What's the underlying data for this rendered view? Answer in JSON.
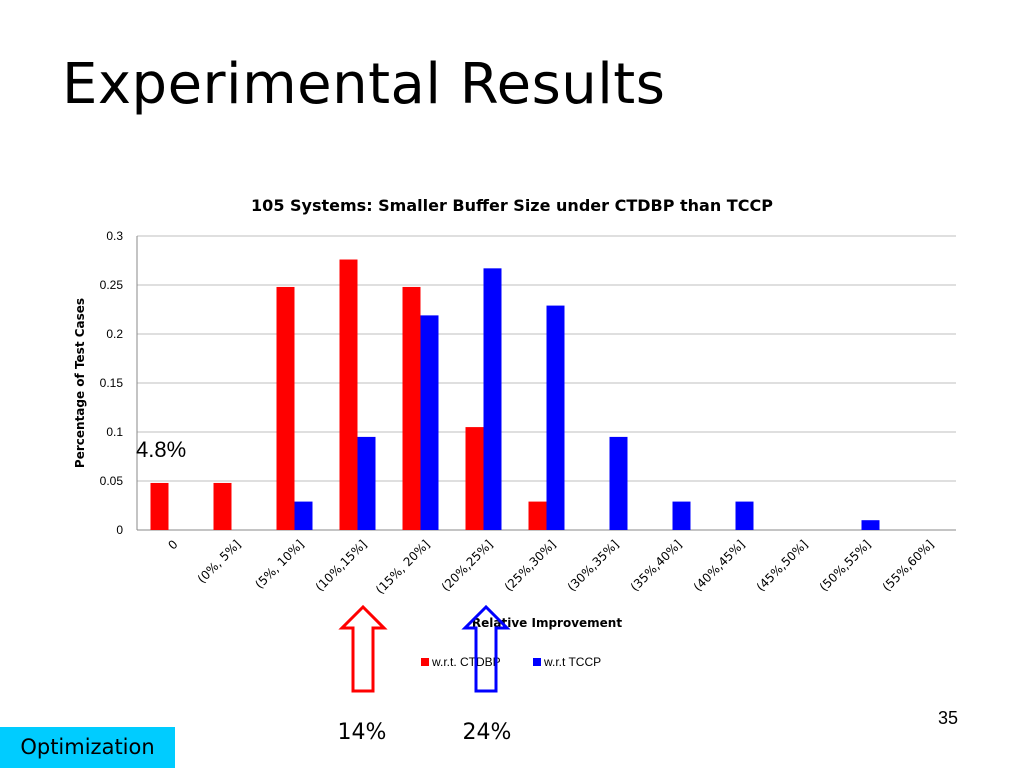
{
  "slide": {
    "title": "Experimental Results",
    "page_number": "35",
    "section_tag": "Optimization"
  },
  "annotations": {
    "callout_value": "4.8%",
    "arrow_red_label": "14%",
    "arrow_blue_label": "24%",
    "arrow_red_color": "#ff0000",
    "arrow_blue_color": "#0000ff"
  },
  "chart_data": {
    "type": "bar",
    "title": "105 Systems: Smaller Buffer Size under CTDBP than TCCP",
    "xlabel": "Relative Improvement",
    "ylabel": "Percentage of Test Cases",
    "ylim": [
      0,
      0.3
    ],
    "yticks": [
      "0",
      "0.05",
      "0.1",
      "0.15",
      "0.2",
      "0.25",
      "0.3"
    ],
    "grid": true,
    "legend_position": "bottom",
    "categories": [
      "0",
      "(0%, 5%]",
      "(5%, 10%]",
      "(10%,15%]",
      "(15%, 20%]",
      "(20%,25%]",
      "(25%,30%]",
      "(30%,35%]",
      "(35%,40%]",
      "(40%,45%]",
      "(45%,50%]",
      "(50%,55%]",
      "(55%,60%]"
    ],
    "series": [
      {
        "name": "w.r.t. CTDBP",
        "color": "#ff0000",
        "values": [
          0.048,
          0.048,
          0.248,
          0.276,
          0.248,
          0.105,
          0.029,
          0,
          0,
          0,
          0,
          0,
          0
        ]
      },
      {
        "name": "w.r.t TCCP",
        "color": "#0000ff",
        "values": [
          0,
          0,
          0.029,
          0.095,
          0.219,
          0.267,
          0.229,
          0.095,
          0.029,
          0.029,
          0,
          0.01,
          0
        ]
      }
    ]
  }
}
